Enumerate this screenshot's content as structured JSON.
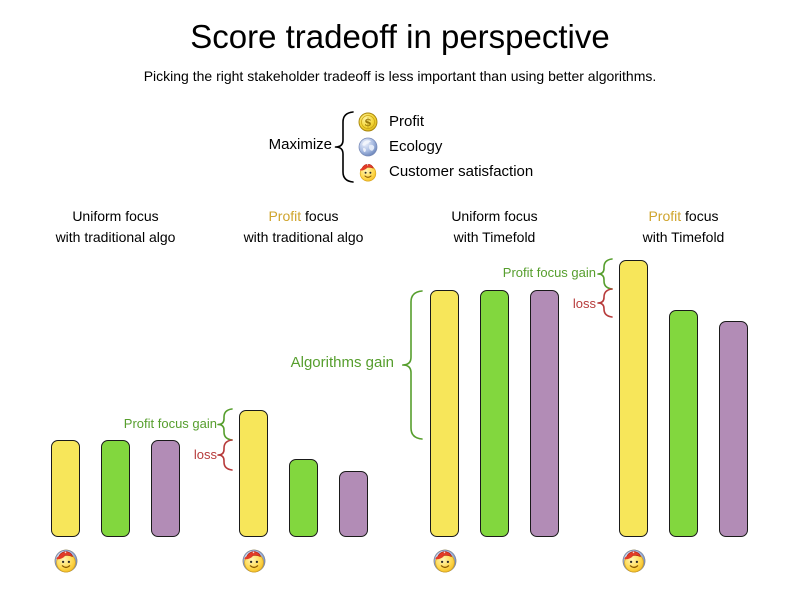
{
  "chart_data": {
    "type": "bar",
    "title": "Score tradeoff in perspective",
    "subtitle": "Picking the right stakeholder tradeoff is less important than using better algorithms.",
    "categories": [
      "Profit",
      "Ecology",
      "Customer satisfaction"
    ],
    "series_colors": [
      "#f7e65a",
      "#82d73e",
      "#b28cb6"
    ],
    "units": "relative score (tallest bar = 100), no numeric axis shown",
    "grid": false,
    "legend_position": "top-center",
    "groups": [
      {
        "id": "uniform-traditional",
        "line1_colored": "",
        "line1": "Uniform focus",
        "line2": "with traditional algo",
        "values": [
          35,
          35,
          35
        ]
      },
      {
        "id": "profit-traditional",
        "line1_colored": "Profit",
        "line1": " focus",
        "line2": "with traditional algo",
        "values": [
          46,
          28,
          24
        ]
      },
      {
        "id": "uniform-timefold",
        "line1_colored": "",
        "line1": "Uniform focus",
        "line2": "with Timefold",
        "values": [
          89,
          89,
          89
        ]
      },
      {
        "id": "profit-timefold",
        "line1_colored": "Profit",
        "line1": " focus",
        "line2": "with Timefold",
        "values": [
          100,
          82,
          78
        ]
      }
    ],
    "annotations": {
      "g2_gain": {
        "label": "Profit focus gain",
        "color": "#569e2d"
      },
      "g2_loss": {
        "label": "loss",
        "color": "#b73b3b"
      },
      "algorithms_gain": {
        "label": "Algorithms gain",
        "color": "#569e2d"
      },
      "g4_gain": {
        "label": "Profit focus gain",
        "color": "#569e2d"
      },
      "g4_loss": {
        "label": "loss",
        "color": "#b73b3b"
      }
    }
  },
  "legend": {
    "prefix": "Maximize",
    "items": [
      {
        "icon": "dollar-coin-icon",
        "label": "Profit"
      },
      {
        "icon": "globe-icon",
        "label": "Ecology"
      },
      {
        "icon": "smiley-cap-icon",
        "label": "Customer satisfaction"
      }
    ]
  },
  "colors": {
    "background": "#ffffff",
    "text": "#000000",
    "profit_gold_text": "#cfa42c",
    "gain_green": "#569e2d",
    "loss_red": "#b73b3b",
    "bar_border": "#1a1a1a"
  }
}
